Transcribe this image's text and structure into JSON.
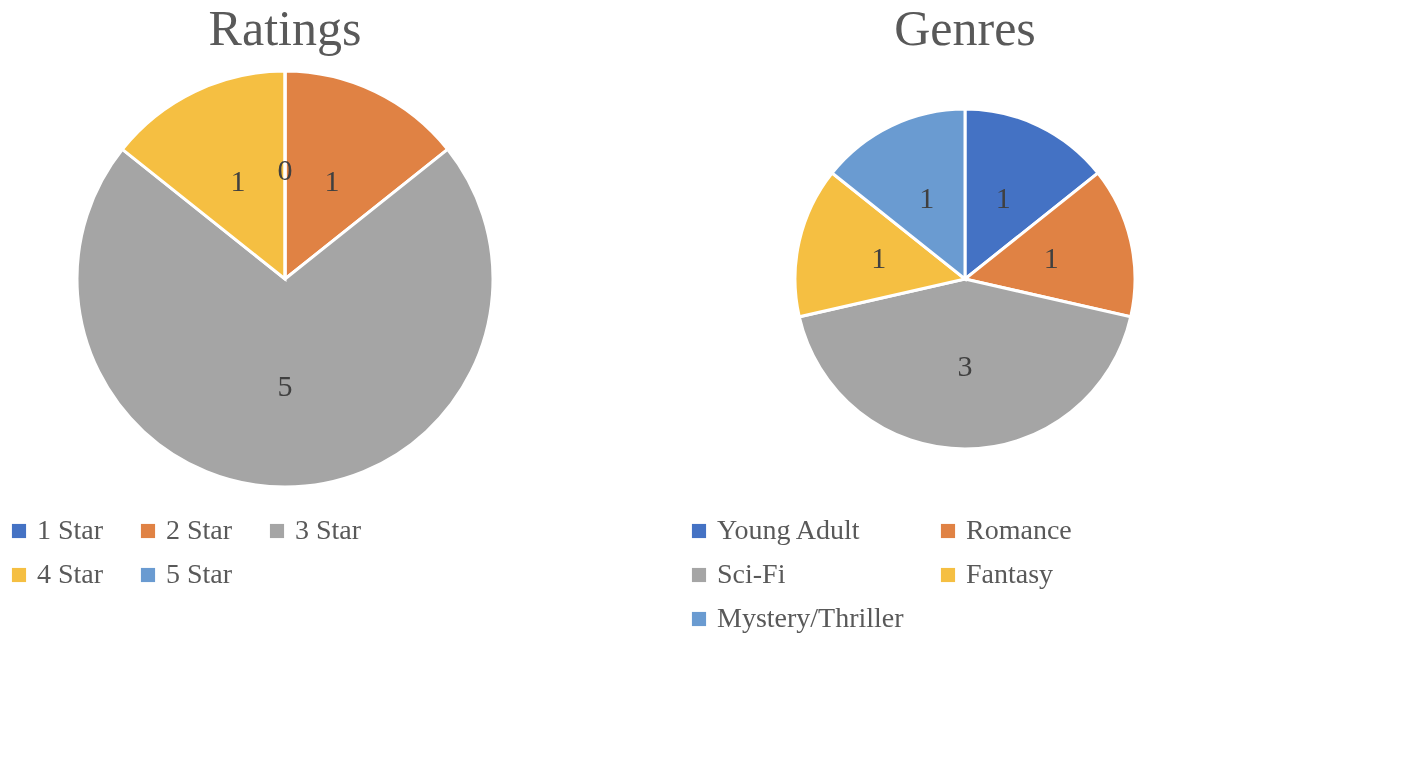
{
  "chart_data": [
    {
      "type": "pie",
      "title": "Ratings",
      "categories": [
        "1 Star",
        "2 Star",
        "3 Star",
        "4 Star",
        "5 Star"
      ],
      "values": [
        0,
        1,
        5,
        1,
        0
      ],
      "value_labels": [
        "0",
        "1",
        "5",
        "1",
        null
      ],
      "colors": [
        "#4472c4",
        "#e08244",
        "#a5a5a5",
        "#f5bf42",
        "#6a9bd1"
      ],
      "legend": "bottom"
    },
    {
      "type": "pie",
      "title": "Genres",
      "categories": [
        "Young Adult",
        "Romance",
        "Sci-Fi",
        "Fantasy",
        "Mystery/Thriller"
      ],
      "values": [
        1,
        1,
        3,
        1,
        1
      ],
      "data_labels": true,
      "colors": [
        "#4472c4",
        "#e08244",
        "#a5a5a5",
        "#f5bf42",
        "#6a9bd1"
      ],
      "legend": "bottom"
    }
  ]
}
